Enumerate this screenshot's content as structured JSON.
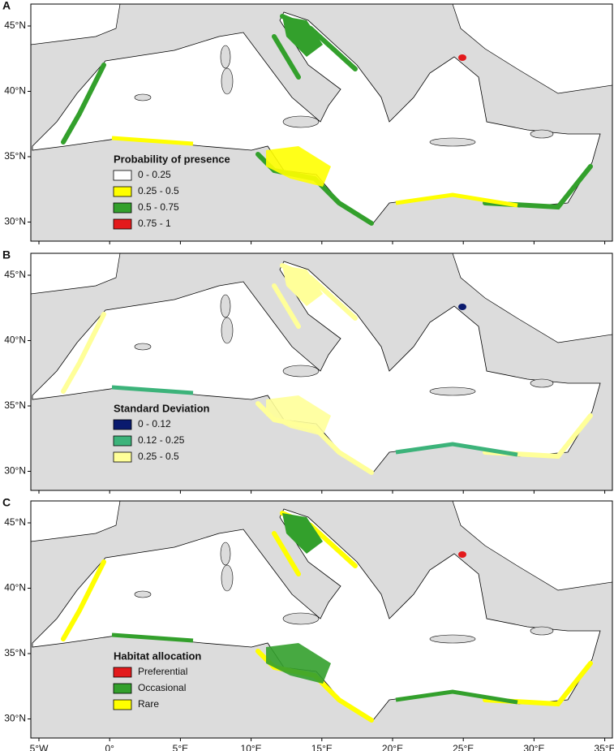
{
  "panels": [
    {
      "letter": "A",
      "legend": {
        "title": "Probability of presence",
        "items": [
          {
            "label": "0 - 0.25",
            "color": "#ffffff"
          },
          {
            "label": "0.25 - 0.5",
            "color": "#ffff00"
          },
          {
            "label": "0.5 - 0.75",
            "color": "#33a02c"
          },
          {
            "label": "0.75 - 1",
            "color": "#e31a1c"
          }
        ]
      }
    },
    {
      "letter": "B",
      "legend": {
        "title": "Standard Deviation",
        "items": [
          {
            "label": "0 - 0.12",
            "color": "#0a1a6e"
          },
          {
            "label": "0.12 - 0.25",
            "color": "#3cb37a"
          },
          {
            "label": "0.25 - 0.5",
            "color": "#ffff99"
          }
        ]
      }
    },
    {
      "letter": "C",
      "legend": {
        "title": "Habitat allocation",
        "items": [
          {
            "label": "Preferential",
            "color": "#e31a1c"
          },
          {
            "label": "Occasional",
            "color": "#33a02c"
          },
          {
            "label": "Rare",
            "color": "#ffff00"
          }
        ]
      }
    }
  ],
  "lat_labels": [
    "45°N",
    "40°N",
    "35°N",
    "30°N"
  ],
  "lon_labels": [
    "5°W",
    "0°",
    "5°E",
    "10°E",
    "15°E",
    "20°E",
    "25°E",
    "30°E",
    "35°E"
  ]
}
